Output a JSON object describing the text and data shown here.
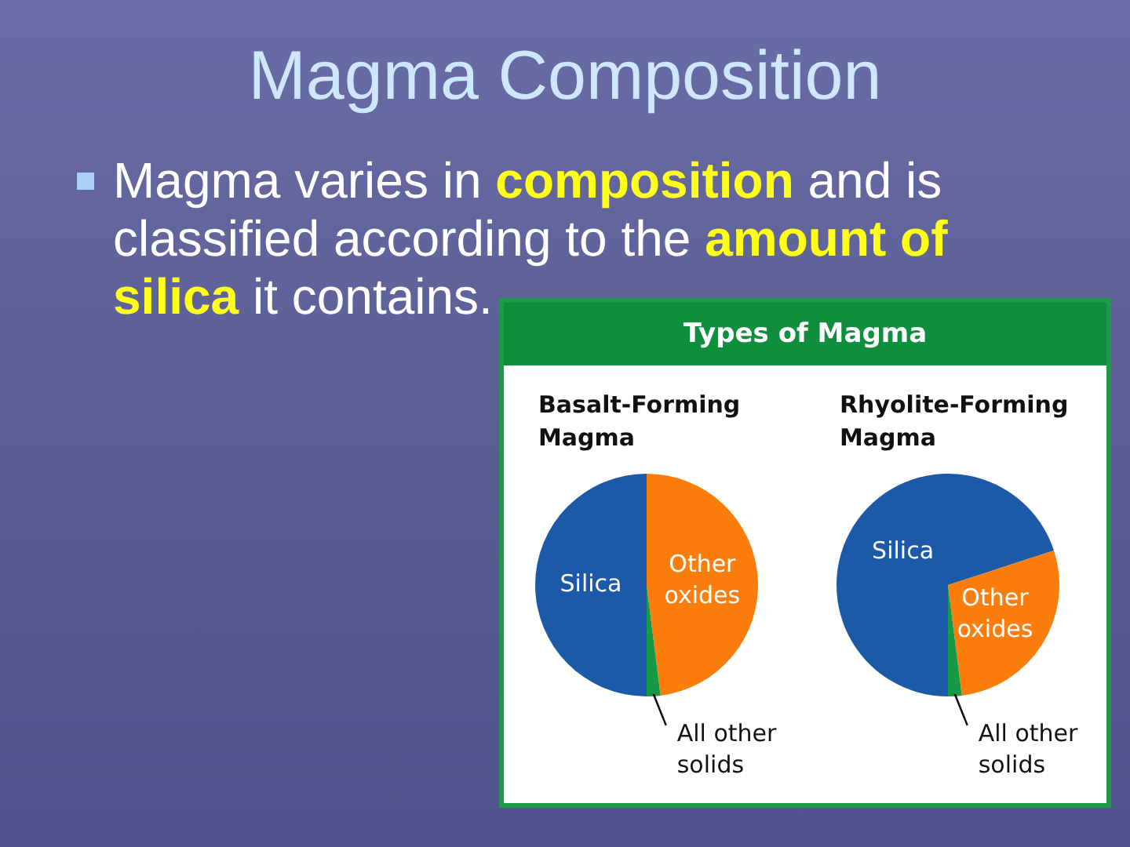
{
  "chart_data": [
    {
      "type": "other",
      "title": "Magma Composition",
      "subtitle": "Magma varies in composition and is classified according to the amount of silica it contains."
    },
    {
      "type": "other",
      "title": "Types of Magma"
    },
    {
      "type": "pie",
      "title": "Basalt-Forming Magma",
      "categories": [
        "Silica",
        "Other oxides",
        "All other solids"
      ],
      "values": [
        50,
        48,
        2
      ],
      "colors": [
        "#1c5aa8",
        "#fb7d0c",
        "#179a48"
      ]
    },
    {
      "type": "pie",
      "title": "Rhyolite-Forming Magma",
      "categories": [
        "Silica",
        "Other oxides",
        "All other solids"
      ],
      "values": [
        70,
        28,
        2
      ],
      "colors": [
        "#1c5aa8",
        "#fb7d0c",
        "#179a48"
      ]
    }
  ]
}
